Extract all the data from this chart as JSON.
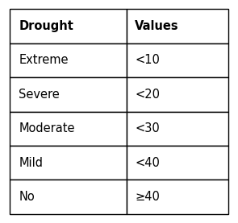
{
  "col_headers": [
    "Drought",
    "Values"
  ],
  "rows": [
    [
      "Extreme",
      "<10"
    ],
    [
      "Severe",
      "<20"
    ],
    [
      "Moderate",
      "<30"
    ],
    [
      "Mild",
      "<40"
    ],
    [
      "No",
      "≥40"
    ]
  ],
  "header_bg": "#ffffff",
  "cell_bg": "#ffffff",
  "border_color": "#000000",
  "header_fontsize": 10.5,
  "cell_fontsize": 10.5,
  "fig_bg": "#ffffff",
  "fig_width": 2.95,
  "fig_height": 2.77,
  "dpi": 100
}
